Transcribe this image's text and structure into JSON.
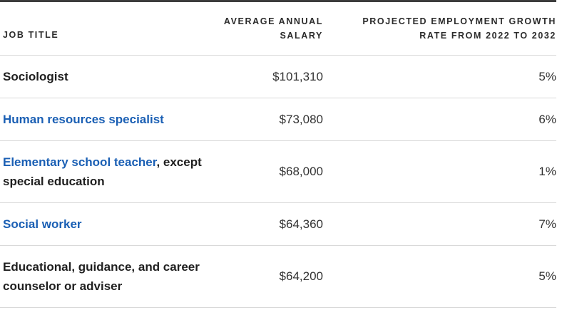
{
  "table": {
    "headers": {
      "job_title": "JOB TITLE",
      "salary_line1": "AVERAGE ANNUAL",
      "salary_line2": "SALARY",
      "growth_line1": "PROJECTED EMPLOYMENT GROWTH",
      "growth_line2": "RATE FROM 2022 TO 2032"
    },
    "rows": [
      {
        "job_link": "",
        "job_text": "Sociologist",
        "salary": "$101,310",
        "growth": "5%"
      },
      {
        "job_link": "Human resources specialist",
        "job_text": "",
        "salary": "$73,080",
        "growth": "6%"
      },
      {
        "job_link": "Elementary school teacher",
        "job_text": ", except special education",
        "salary": "$68,000",
        "growth": "1%"
      },
      {
        "job_link": "Social worker",
        "job_text": "",
        "salary": "$64,360",
        "growth": "7%"
      },
      {
        "job_link": "",
        "job_text": "Educational, guidance, and career counselor or adviser",
        "salary": "$64,200",
        "growth": "5%"
      }
    ]
  },
  "colors": {
    "link": "#1a5fb4",
    "top_rule": "#3c3c3c",
    "row_divider": "#d9d9d9"
  }
}
